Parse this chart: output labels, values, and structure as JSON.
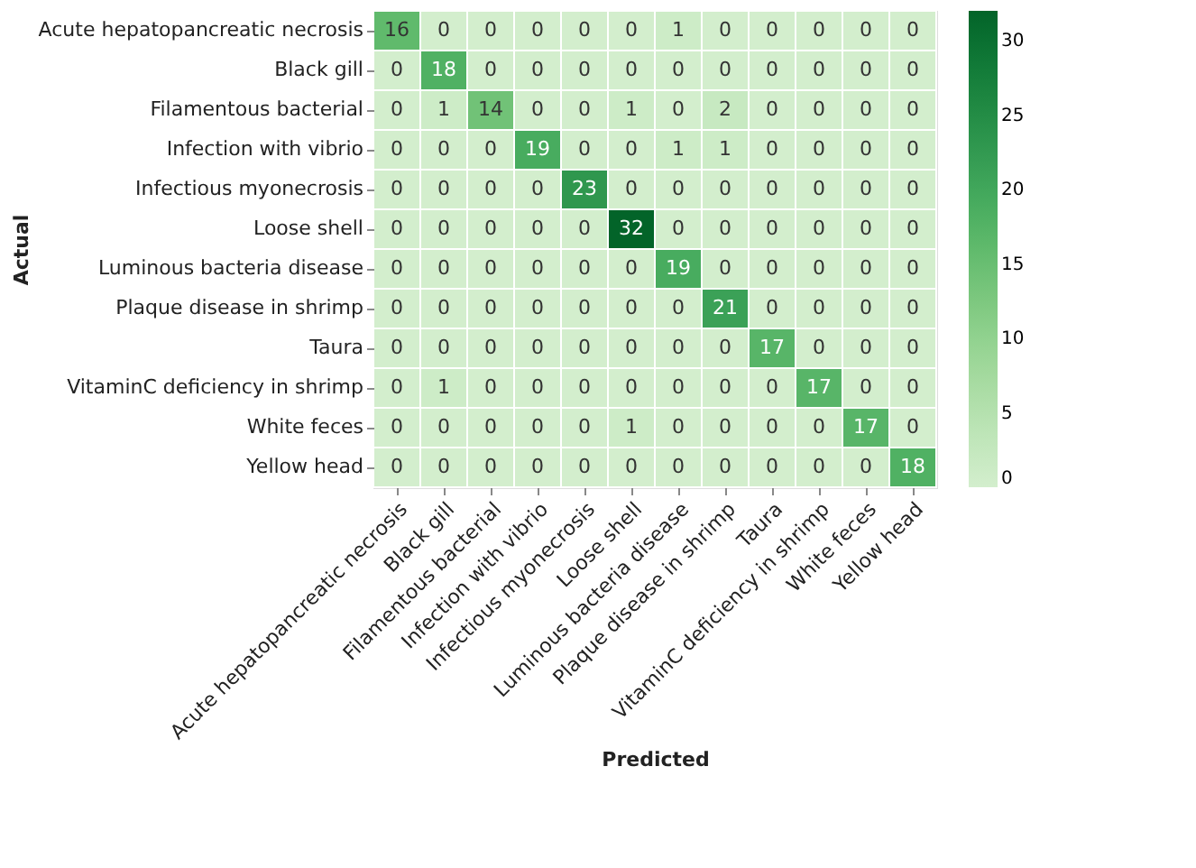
{
  "chart_data": {
    "type": "heatmap",
    "xlabel": "Predicted",
    "ylabel": "Actual",
    "categories": [
      "Acute hepatopancreatic necrosis",
      "Black gill",
      "Filamentous bacterial",
      "Infection with vibrio",
      "Infectious myonecrosis",
      "Loose shell",
      "Luminous bacteria disease",
      "Plaque disease in shrimp",
      "Taura",
      "VitaminC deficiency in shrimp",
      "White feces",
      "Yellow head"
    ],
    "y_categories": [
      "Acute hepatopancreatic necrosis",
      "Black gill",
      "Filamentous bacterial",
      "Infection with vibrio",
      "Infectious myonecrosis",
      "Loose shell",
      "Luminous bacteria disease",
      "Plaque disease in shrimp",
      "Taura",
      "VitaminC deficiency in shrimp",
      "White feces",
      "Yellow head"
    ],
    "cells": [
      [
        16,
        0,
        0,
        0,
        0,
        0,
        1,
        0,
        0,
        0,
        0,
        0
      ],
      [
        0,
        18,
        0,
        0,
        0,
        0,
        0,
        0,
        0,
        0,
        0,
        0
      ],
      [
        0,
        1,
        14,
        0,
        0,
        1,
        0,
        2,
        0,
        0,
        0,
        0
      ],
      [
        0,
        0,
        0,
        19,
        0,
        0,
        1,
        1,
        0,
        0,
        0,
        0
      ],
      [
        0,
        0,
        0,
        0,
        23,
        0,
        0,
        0,
        0,
        0,
        0,
        0
      ],
      [
        0,
        0,
        0,
        0,
        0,
        32,
        0,
        0,
        0,
        0,
        0,
        0
      ],
      [
        0,
        0,
        0,
        0,
        0,
        0,
        19,
        0,
        0,
        0,
        0,
        0
      ],
      [
        0,
        0,
        0,
        0,
        0,
        0,
        0,
        21,
        0,
        0,
        0,
        0
      ],
      [
        0,
        0,
        0,
        0,
        0,
        0,
        0,
        0,
        17,
        0,
        0,
        0
      ],
      [
        0,
        1,
        0,
        0,
        0,
        0,
        0,
        0,
        0,
        17,
        0,
        0
      ],
      [
        0,
        0,
        0,
        0,
        0,
        1,
        0,
        0,
        0,
        0,
        17,
        0
      ],
      [
        0,
        0,
        0,
        0,
        0,
        0,
        0,
        0,
        0,
        0,
        0,
        18
      ]
    ],
    "data_labels": true,
    "clim": [
      0,
      32
    ],
    "cticks": [
      0,
      5,
      10,
      15,
      20,
      25,
      30
    ]
  }
}
